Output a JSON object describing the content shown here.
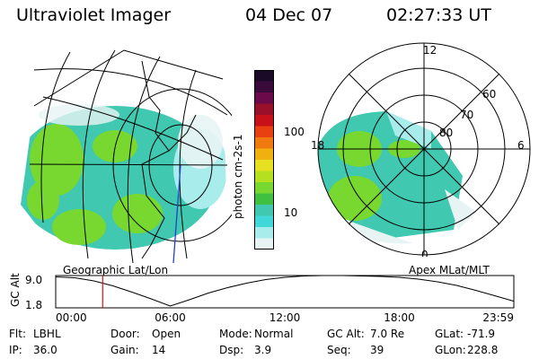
{
  "header": {
    "instrument": "Ultraviolet Imager",
    "date": "04 Dec 07",
    "time": "02:27:33 UT"
  },
  "left_panel": {
    "caption": "Geographic Lat/Lon"
  },
  "right_panel": {
    "caption": "Apex MLat/MLT",
    "mlt_labels": {
      "top": "12",
      "left": "18",
      "right": "6",
      "bottom": "0"
    },
    "lat_labels": [
      "60",
      "70",
      "80"
    ]
  },
  "colorbar": {
    "unit_label": "photon cm-2s-1",
    "ticks": [
      {
        "label": "100",
        "value": 100
      },
      {
        "label": "10",
        "value": 10
      }
    ],
    "colors": [
      "#1a0a28",
      "#3a0a3a",
      "#6a0a4a",
      "#9a0f2a",
      "#c8101a",
      "#e84010",
      "#f07a10",
      "#f0b010",
      "#e6e020",
      "#b4e020",
      "#78d830",
      "#40c040",
      "#40c8b0",
      "#40d8d8",
      "#a8ecec",
      "#e8f4f4"
    ]
  },
  "chart_data": [
    {
      "type": "line",
      "title": "GC Alt",
      "xlabel": "",
      "ylabel": "GC Alt",
      "x_ticks": [
        "00:00",
        "06:00",
        "12:00",
        "18:00",
        "23:59"
      ],
      "y_ticks": [
        "9.0",
        "1.8"
      ],
      "ylim": [
        1.8,
        9.0
      ],
      "xlim_hours": [
        0,
        24
      ],
      "series": [
        {
          "name": "GC Alt",
          "x": [
            0,
            1,
            2,
            3,
            4,
            5,
            6,
            7,
            8,
            9,
            10,
            11,
            12,
            13,
            14,
            15,
            16,
            17,
            18,
            19,
            20,
            21,
            22,
            23,
            23.98
          ],
          "y": [
            8.7,
            8.5,
            7.8,
            6.7,
            5.3,
            3.8,
            2.2,
            3.6,
            5.1,
            6.3,
            7.3,
            8.1,
            8.6,
            8.9,
            9.0,
            9.0,
            8.9,
            8.8,
            8.6,
            8.2,
            7.6,
            6.8,
            5.7,
            4.5,
            3.3
          ]
        }
      ],
      "marker_time_hours": 2.46
    }
  ],
  "footer": {
    "rows": [
      [
        {
          "label": "Flt:",
          "value": "LBHL"
        },
        {
          "label": "Door:",
          "value": "Open"
        },
        {
          "label": "Mode:",
          "value": "Normal"
        },
        {
          "label": "GC Alt:",
          "value": "7.0 Re"
        },
        {
          "label": "GLat:",
          "value": "-71.9"
        }
      ],
      [
        {
          "label": "IP:",
          "value": "36.0"
        },
        {
          "label": "Gain:",
          "value": "14"
        },
        {
          "label": "Dsp:",
          "value": "3.9"
        },
        {
          "label": "Seq:",
          "value": "39"
        },
        {
          "label": "GLon:",
          "value": "228.8"
        }
      ]
    ]
  }
}
